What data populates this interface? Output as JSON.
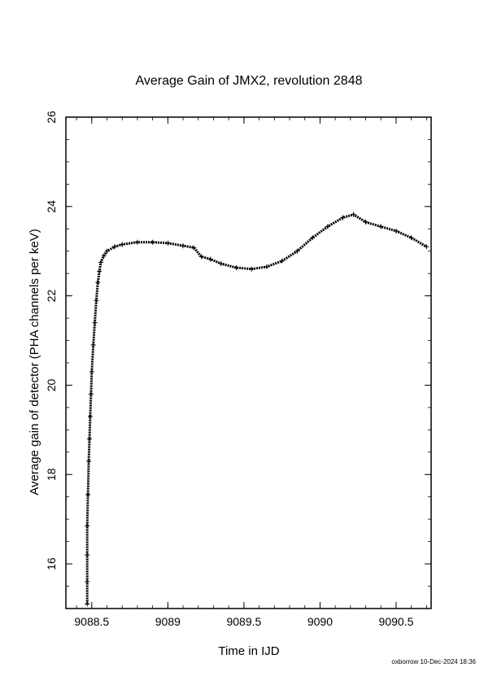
{
  "chart_data": {
    "type": "scatter",
    "title": "Average Gain of JMX2, revolution 2848",
    "xlabel": "Time in IJD",
    "ylabel": "Average gain of detector (PHA channels per keV)",
    "xlim": [
      9088.33,
      9090.73
    ],
    "ylim": [
      15,
      26
    ],
    "xticks": [
      "9088.5",
      "9089",
      "9089.5",
      "9090",
      "9090.5"
    ],
    "yticks": [
      "16",
      "18",
      "20",
      "22",
      "24",
      "26"
    ],
    "grid": false,
    "legend": "none",
    "series": [
      {
        "marker": "plus",
        "x": [
          9088.47,
          9088.47,
          9088.47,
          9088.47,
          9088.475,
          9088.48,
          9088.485,
          9088.49,
          9088.495,
          9088.5,
          9088.51,
          9088.52,
          9088.53,
          9088.54,
          9088.55,
          9088.56,
          9088.58,
          9088.6,
          9088.65,
          9088.7,
          9088.8,
          9088.9,
          9089.0,
          9089.1,
          9089.17,
          9089.22,
          9089.28,
          9089.35,
          9089.45,
          9089.55,
          9089.65,
          9089.75,
          9089.85,
          9089.95,
          9090.05,
          9090.15,
          9090.22,
          9090.3,
          9090.4,
          9090.5,
          9090.6,
          9090.7
        ],
        "y": [
          15.1,
          15.6,
          16.2,
          16.85,
          17.55,
          18.3,
          18.8,
          19.3,
          19.8,
          20.3,
          20.9,
          21.4,
          21.9,
          22.3,
          22.55,
          22.75,
          22.9,
          23.0,
          23.1,
          23.15,
          23.2,
          23.2,
          23.18,
          23.12,
          23.08,
          22.88,
          22.82,
          22.72,
          22.63,
          22.6,
          22.65,
          22.78,
          23.0,
          23.3,
          23.55,
          23.75,
          23.82,
          23.65,
          23.55,
          23.45,
          23.3,
          23.1
        ]
      }
    ]
  },
  "footer": "oxborrow 10-Dec-2024 18:36"
}
